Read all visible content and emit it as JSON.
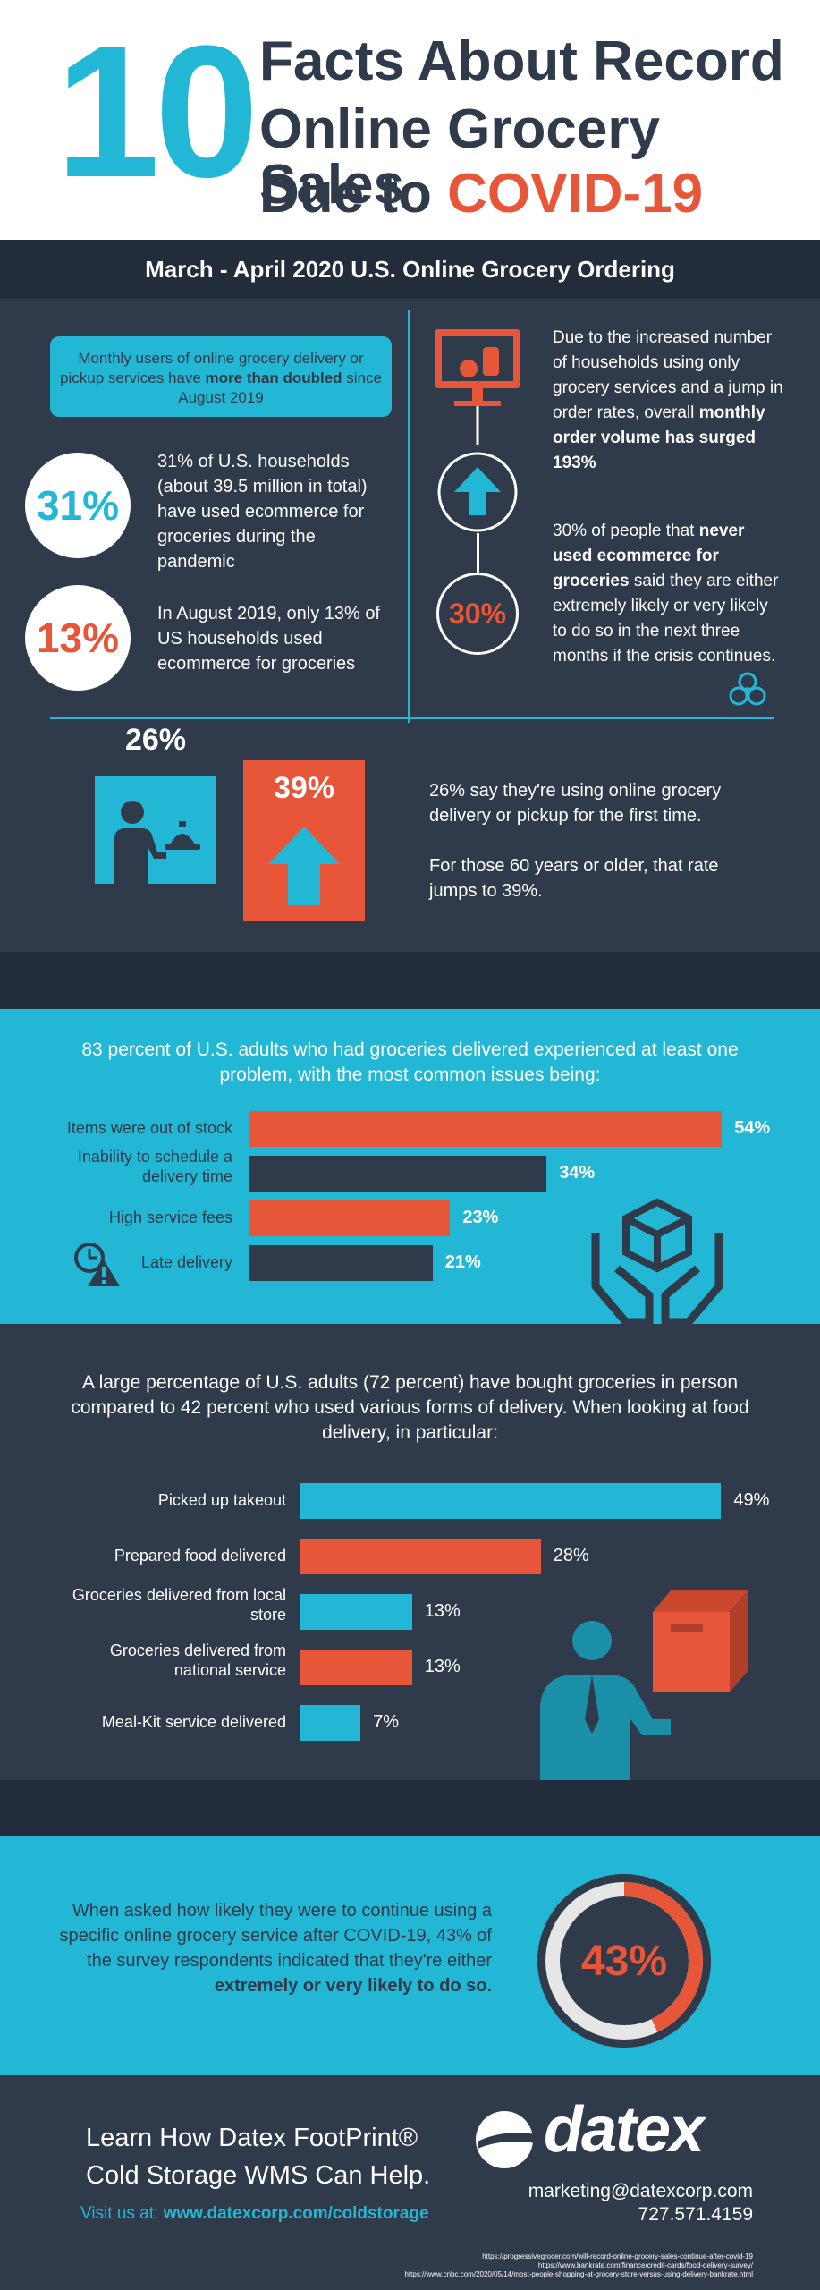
{
  "header": {
    "big_number": "10",
    "title_line1": "Facts About Record",
    "title_line2": "Online Grocery Sales",
    "title_line3a": "Due to ",
    "title_line3b": "COVID-19"
  },
  "banner": "March - April 2020 U.S. Online Grocery Ordering",
  "callout": {
    "text_a": "Monthly users of online grocery delivery or pickup services have ",
    "text_bold": "more than doubled",
    "text_b": " since August 2019"
  },
  "stat31": {
    "value": "31%",
    "text": "31% of U.S. households (about 39.5 million in total) have used ecommerce for groceries during the pandemic"
  },
  "stat13": {
    "value": "13%",
    "text": "In August 2019, only 13% of US households used ecommerce for groceries"
  },
  "order_volume": {
    "text_a": "Due to the increased number of households using only grocery services and a jump in order rates, overall ",
    "text_bold": "monthly order volume has surged 193%"
  },
  "stat30": {
    "value": "30%",
    "text_a": "30% of people that ",
    "text_bold": "never used ecommerce for groceries",
    "text_b": " said they are either extremely likely or very likely to do so in the next three months if the crisis continues."
  },
  "first_time": {
    "v26": "26%",
    "v39": "39%",
    "text1": "26% say they're using online grocery delivery or pickup for the first time.",
    "text2": "For those 60 years or older, that rate jumps to 39%."
  },
  "problems": {
    "intro": "83 percent of U.S. adults who had groceries delivered experienced at least one problem, with the most common issues being:",
    "items": [
      {
        "label": "Items were out of stock",
        "value": 54,
        "display": "54%",
        "color": "#e8563a"
      },
      {
        "label": "Inability to schedule a delivery time",
        "value": 34,
        "display": "34%",
        "color": "#2f3a4b"
      },
      {
        "label": "High service fees",
        "value": 23,
        "display": "23%",
        "color": "#e8563a"
      },
      {
        "label": "Late delivery",
        "value": 21,
        "display": "21%",
        "color": "#2f3a4b"
      }
    ]
  },
  "delivery": {
    "intro": "A large percentage of U.S. adults (72 percent) have bought groceries in person compared to 42 percent who used various forms of delivery. When looking at food delivery, in particular:",
    "items": [
      {
        "label": "Picked up takeout",
        "value": 49,
        "display": "49%",
        "color": "#22b8d5"
      },
      {
        "label": "Prepared food delivered",
        "value": 28,
        "display": "28%",
        "color": "#e8563a"
      },
      {
        "label": "Groceries delivered from local store",
        "value": 13,
        "display": "13%",
        "color": "#22b8d5"
      },
      {
        "label": "Groceries delivered from national service",
        "value": 13,
        "display": "13%",
        "color": "#e8563a"
      },
      {
        "label": "Meal-Kit service delivered",
        "value": 7,
        "display": "7%",
        "color": "#22b8d5"
      }
    ]
  },
  "likely": {
    "text_a": "When asked how likely they were to continue using a specific online grocery service after COVID-19, 43% of the survey respondents indicated that they're either ",
    "text_bold": "extremely or very likely to do so.",
    "value": "43%",
    "fraction": 0.43
  },
  "footer": {
    "cta_line1": "Learn How Datex FootPrint®",
    "cta_line2": "Cold Storage WMS Can Help.",
    "visit_label": "Visit us at: ",
    "visit_url": "www.datexcorp.com/coldstorage",
    "brand": "datex",
    "email": "marketing@datexcorp.com",
    "phone": "727.571.4159",
    "sources": [
      "https://progressivegrocer.com/will-record-online-grocery-sales-continue-after-covid-19",
      "https://www.bankrate.com/finance/credit-cards/food-delivery-survey/",
      "https://www.cnbc.com/2020/05/14/most-people-shopping-at-grocery-store-versus-using-delivery-bankrate.html"
    ]
  },
  "colors": {
    "navy": "#2f3a4b",
    "dark": "#232c3a",
    "cyan": "#22b8d5",
    "orange": "#e8563a"
  }
}
